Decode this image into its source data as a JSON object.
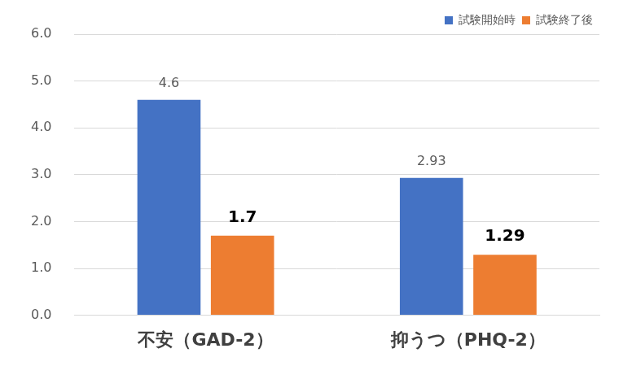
{
  "chart_data": {
    "type": "bar",
    "categories": [
      "不安（GAD-2）",
      "抑うつ（PHQ-2）"
    ],
    "series": [
      {
        "name": "試験開始時",
        "color": "#4472c4",
        "values": [
          4.6,
          2.93
        ]
      },
      {
        "name": "試験終了後",
        "color": "#ed7d31",
        "values": [
          1.7,
          1.29
        ]
      }
    ],
    "ylim": [
      0,
      6
    ],
    "yticks": [
      {
        "value": 0,
        "label": "0.0"
      },
      {
        "value": 1,
        "label": "1.0"
      },
      {
        "value": 2,
        "label": "2.0"
      },
      {
        "value": 3,
        "label": "3.0"
      },
      {
        "value": 4,
        "label": "4.0"
      },
      {
        "value": 5,
        "label": "5.0"
      },
      {
        "value": 6,
        "label": "6.0"
      }
    ],
    "grid": true,
    "legend": "top-right",
    "data_labels": true
  }
}
